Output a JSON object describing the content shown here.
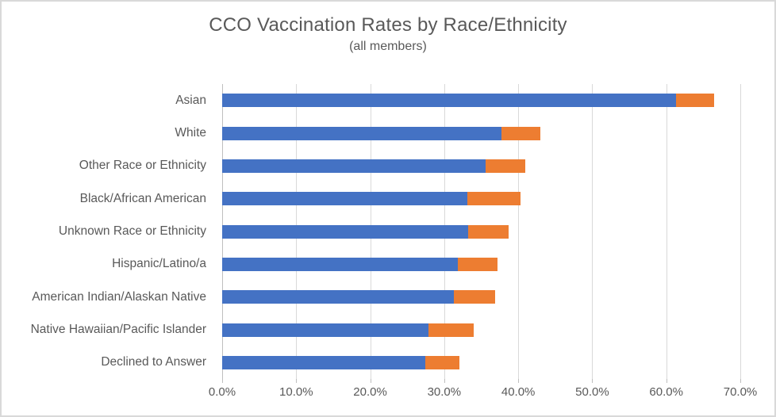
{
  "chart_data": {
    "type": "bar",
    "orientation": "horizontal",
    "stacked": true,
    "title": "CCO Vaccination Rates by Race/Ethnicity",
    "subtitle": "(all members)",
    "categories": [
      "Asian",
      "White",
      "Other Race or Ethnicity",
      "Black/African American",
      "Unknown Race or Ethnicity",
      "Hispanic/Latino/a",
      "American Indian/Alaskan Native",
      "Native Hawaiian/Pacific Islander",
      "Declined to Answer"
    ],
    "series": [
      {
        "name": "blue-segment",
        "color": "#4472C4",
        "values": [
          61.3,
          37.7,
          35.6,
          33.1,
          33.2,
          31.8,
          31.3,
          27.9,
          27.4
        ]
      },
      {
        "name": "orange-segment",
        "color": "#ED7D31",
        "values": [
          5.2,
          5.3,
          5.4,
          7.2,
          5.5,
          5.4,
          5.6,
          6.1,
          4.7
        ]
      }
    ],
    "stacked_totals": [
      66.5,
      43.0,
      41.0,
      40.3,
      38.7,
      37.2,
      36.9,
      34.0,
      32.1
    ],
    "x_axis": {
      "min": 0,
      "max": 70,
      "tick_labels": [
        "0.0%",
        "10.0%",
        "20.0%",
        "30.0%",
        "40.0%",
        "50.0%",
        "60.0%",
        "70.0%"
      ]
    },
    "y_axis_label": "",
    "xlabel": "",
    "legend": "none",
    "grid": "vertical-only"
  },
  "colors": {
    "bar_blue": "#4472C4",
    "bar_orange": "#ED7D31",
    "gridline": "#D9D9D9",
    "axis_line": "#BFBFBF",
    "text": "#595959",
    "frame_border": "#D9D9D9",
    "background": "#FFFFFF"
  }
}
